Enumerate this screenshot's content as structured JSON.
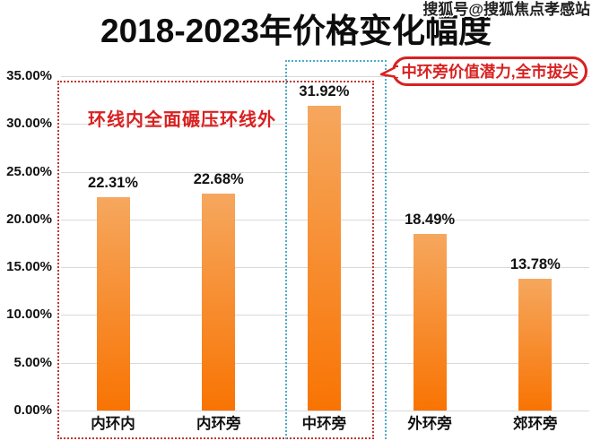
{
  "title": "2018-2023年价格变化幅度",
  "watermark": "搜狐号@搜狐焦点孝感站",
  "annotations": {
    "inner_ring_note": "环线内全面碾压环线外",
    "bubble_note": "中环旁价值潜力,全市拔尖"
  },
  "colors": {
    "bar_top": "#f6a75e",
    "bar_bottom": "#f87403",
    "red_box": "#bf3734",
    "blue_box": "#4bacc6",
    "note_red": "#d92121",
    "grid_line": "#d9d9d9"
  },
  "chart_data": {
    "type": "bar",
    "title": "2018-2023年价格变化幅度",
    "categories": [
      "内环内",
      "内环旁",
      "中环旁",
      "外环旁",
      "郊环旁"
    ],
    "values": [
      22.31,
      22.68,
      31.92,
      18.49,
      13.78
    ],
    "value_labels": [
      "22.31%",
      "22.68%",
      "31.92%",
      "18.49%",
      "13.78%"
    ],
    "y_ticks": [
      "35.00%",
      "30.00%",
      "25.00%",
      "20.00%",
      "15.00%",
      "10.00%",
      "5.00%",
      "0.00%"
    ],
    "ylim": [
      0,
      35
    ],
    "y_tick_step": 5,
    "grid": true,
    "legend": "none",
    "bar_color_gradient": [
      "#f6a75e",
      "#f87403"
    ],
    "highlights": {
      "red_dashed_box_around": [
        "内环内",
        "内环旁",
        "中环旁"
      ],
      "red_dashed_box_note": "环线内全面碾压环线外",
      "blue_dashed_box_around": "中环旁",
      "blue_dashed_box_note": "中环旁价值潜力,全市拔尖"
    }
  }
}
